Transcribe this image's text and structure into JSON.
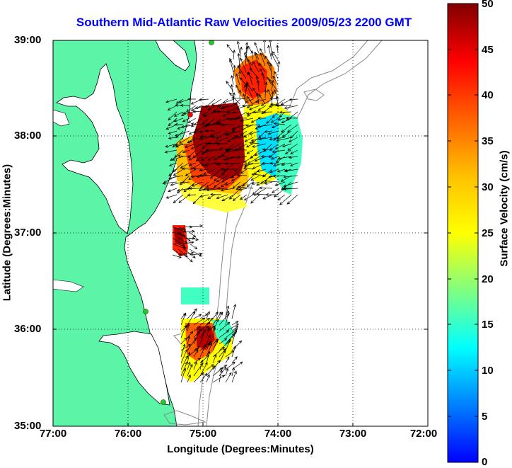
{
  "map": {
    "title": "Southern Mid-Atlantic Raw Velocities 2009/05/23 2200 GMT",
    "xlabel": "Longitude (Degrees:Minutes)",
    "ylabel": "Latitude (Degrees:Minutes)",
    "lat_ticks": [
      "39:00",
      "38:00",
      "37:00",
      "36:00",
      "35:00"
    ],
    "lon_ticks": [
      "77:00",
      "76:00",
      "75:00",
      "74:00",
      "73:00",
      "72:00"
    ],
    "lat_range": [
      35,
      39
    ],
    "lon_range": [
      -77,
      -72
    ],
    "grid": "dotted",
    "land_color": "#5cf5a8",
    "contour_color": "#8a8a8a",
    "arrow_color": "#000000",
    "station_color": "#22cc22",
    "station_red_color": "#ff0000"
  },
  "colorbar": {
    "label": "Surface Velocity (cm/s)",
    "ticks": [
      "50",
      "45",
      "40",
      "35",
      "30",
      "25",
      "20",
      "15",
      "10",
      "5",
      "0"
    ],
    "range": [
      0,
      50
    ],
    "colormap": "jet"
  }
}
